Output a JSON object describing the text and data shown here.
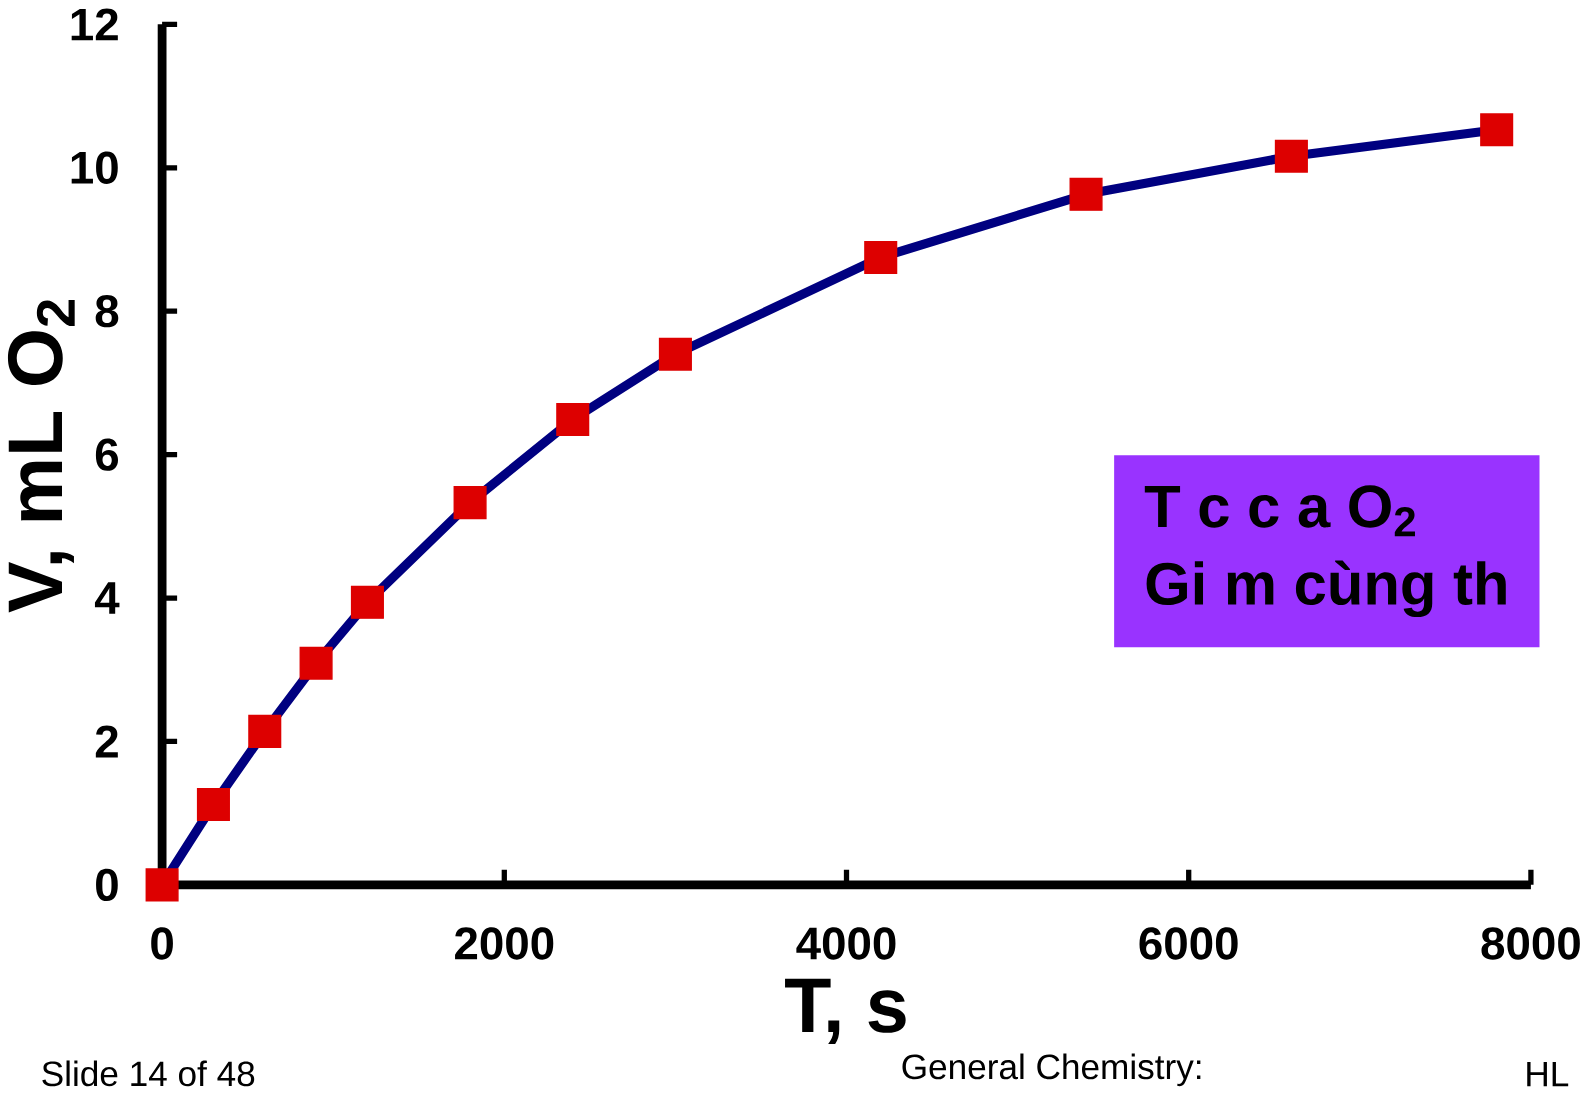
{
  "chart_data": {
    "type": "line",
    "xlabel": "T, s",
    "ylabel": "V, mL O$_{2}$",
    "x": [
      0,
      300,
      600,
      900,
      1200,
      1800,
      2400,
      3000,
      4200,
      5400,
      6600,
      7800
    ],
    "series": [
      {
        "color": "#000080",
        "colors": [
          "#dd0000",
          "#dd0000",
          "#dd0000",
          "#dd0000",
          "#dd0000",
          "#dd0000",
          "#dd0000",
          "#dd0000",
          "#dd0000",
          "#dd0000",
          "#dd0000",
          "#dd0000"
        ],
        "values": [
          0,
          1.12,
          2.14,
          3.09,
          3.94,
          5.33,
          6.49,
          7.4,
          8.75,
          9.63,
          10.16,
          10.53
        ]
      }
    ],
    "xlim": [
      0,
      8000
    ],
    "xticks": [
      0,
      2000,
      4000,
      6000,
      8000
    ],
    "ylim": [
      0,
      12
    ],
    "yticks": [
      0,
      2,
      4,
      6,
      8,
      10,
      12
    ],
    "marker": "square",
    "line_style": "solid",
    "annotations": [
      "T  c      c  a O$_{2}$",
      "Gi  m cùng th",
      "Slide 14 of 48",
      "General Chemistry:",
      "HL"
    ]
  }
}
